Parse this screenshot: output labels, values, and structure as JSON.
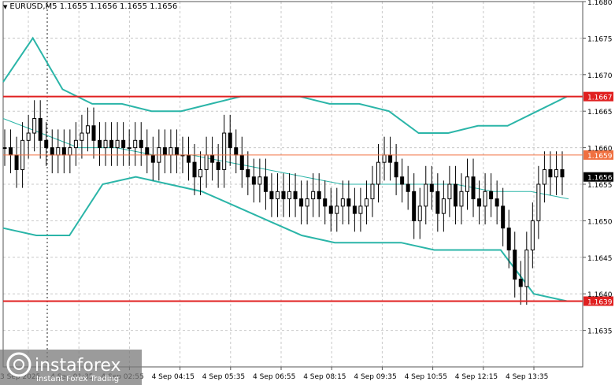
{
  "header": {
    "symbol": "EURUSD,M5",
    "ohlc": "1.1655 1.1656 1.1655 1.1656"
  },
  "watermark": {
    "brand": "instaforex",
    "tagline": "Instant Forex Trading"
  },
  "chart_data": {
    "type": "candlestick",
    "title": "",
    "ylim": [
      1.163,
      1.168
    ],
    "y_ticks": [
      1.1635,
      1.164,
      1.1645,
      1.165,
      1.1655,
      1.166,
      1.1665,
      1.167,
      1.1675,
      1.168
    ],
    "y_tick_labels": [
      "1.1635",
      "1.1640",
      "1.1645",
      "1.1650",
      "1.1655",
      "1.1660",
      "1.1665",
      "1.1670",
      "1.1675",
      "1.1680"
    ],
    "x_tick_labels": [
      "3 Sep 2025",
      "4 Sep 01:35",
      "4 Sep 02:55",
      "4 Sep 04:15",
      "4 Sep 05:35",
      "4 Sep 06:55",
      "4 Sep 08:15",
      "4 Sep 09:35",
      "4 Sep 10:55",
      "4 Sep 12:15",
      "4 Sep 13:35"
    ],
    "grid": true,
    "levels": [
      {
        "value": 1.1667,
        "label": "1.1667",
        "color": "#e02020"
      },
      {
        "value": 1.1659,
        "label": "1.1659",
        "color": "#f07040"
      },
      {
        "value": 1.1639,
        "label": "1.1639",
        "color": "#e02020"
      }
    ],
    "current_price": {
      "value": 1.1656,
      "label": "1.1656"
    },
    "close": [
      1.166,
      1.1659,
      1.1657,
      1.1661,
      1.1662,
      1.1664,
      1.1661,
      1.166,
      1.1659,
      1.166,
      1.1659,
      1.166,
      1.1661,
      1.1662,
      1.1663,
      1.1661,
      1.166,
      1.1661,
      1.166,
      1.1661,
      1.166,
      1.166,
      1.1661,
      1.166,
      1.1659,
      1.1658,
      1.166,
      1.1659,
      1.166,
      1.1659,
      1.1659,
      1.1658,
      1.1656,
      1.1657,
      1.1659,
      1.1658,
      1.1657,
      1.1662,
      1.166,
      1.1659,
      1.1657,
      1.1656,
      1.1655,
      1.1656,
      1.1654,
      1.1653,
      1.1654,
      1.1653,
      1.1654,
      1.1653,
      1.1652,
      1.1653,
      1.1654,
      1.1653,
      1.1652,
      1.1651,
      1.1652,
      1.1653,
      1.1652,
      1.1651,
      1.1652,
      1.1653,
      1.1655,
      1.1658,
      1.1659,
      1.1658,
      1.1656,
      1.1655,
      1.1654,
      1.165,
      1.1652,
      1.1655,
      1.1654,
      1.1651,
      1.1653,
      1.1655,
      1.1652,
      1.1654,
      1.1656,
      1.1653,
      1.1652,
      1.1654,
      1.1653,
      1.1652,
      1.1649,
      1.1646,
      1.1642,
      1.1641,
      1.1646,
      1.165,
      1.1655,
      1.1657,
      1.1656,
      1.1657,
      1.1656
    ],
    "bands_upper": [
      1.1669,
      1.1675,
      1.1668,
      1.1666,
      1.1666,
      1.1665,
      1.1665,
      1.1666,
      1.1667,
      1.1667,
      1.1667,
      1.1666,
      1.1666,
      1.1665,
      1.1662,
      1.1662,
      1.1663,
      1.1663,
      1.1665,
      1.1667
    ],
    "bands_middle": [
      1.1664,
      1.1662,
      1.166,
      1.166,
      1.1659,
      1.1659,
      1.1658,
      1.1657,
      1.1656,
      1.1655,
      1.1655,
      1.1655,
      1.1655,
      1.1654,
      1.1654,
      1.1653
    ],
    "bands_lower": [
      1.1649,
      1.1648,
      1.1648,
      1.1655,
      1.1656,
      1.1655,
      1.1654,
      1.1652,
      1.165,
      1.1648,
      1.1647,
      1.1647,
      1.1647,
      1.1646,
      1.1646,
      1.1646,
      1.164,
      1.1639
    ]
  }
}
